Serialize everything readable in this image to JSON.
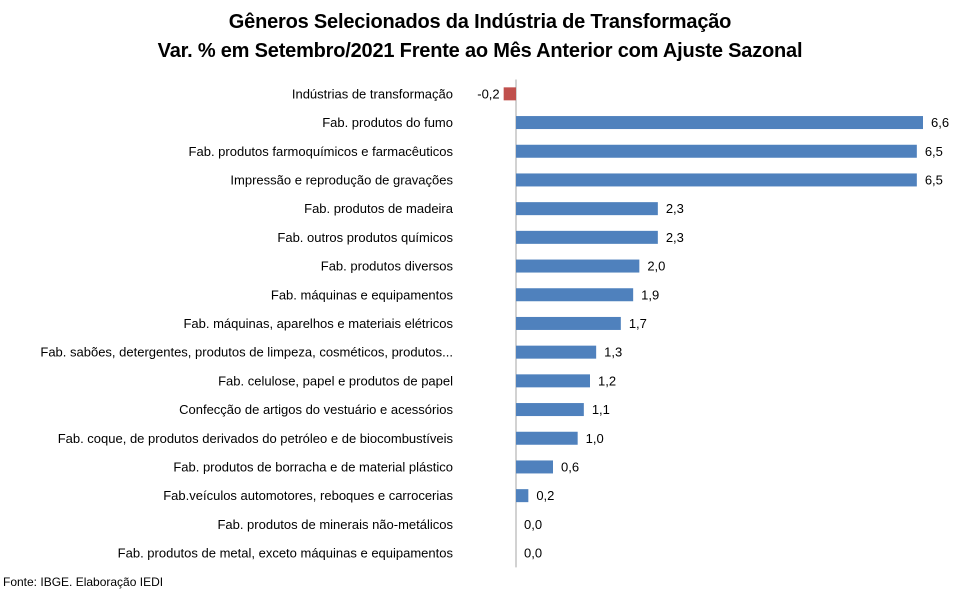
{
  "chart_data": {
    "type": "bar",
    "orientation": "horizontal",
    "title": "Gêneros Selecionados da Indústria de Transformação",
    "subtitle": "Var. % em Setembro/2021 Frente ao Mês Anterior com Ajuste Sazonal",
    "xlabel": "",
    "ylabel": "",
    "xlim": [
      -0.2,
      6.6
    ],
    "grid": false,
    "legend": "none",
    "categories": [
      "Indústrias de transformação",
      "Fab. produtos do fumo",
      "Fab. produtos farmoquímicos e farmacêuticos",
      "Impressão e reprodução de gravações",
      "Fab. produtos de madeira",
      "Fab. outros produtos químicos",
      "Fab. produtos diversos",
      "Fab. máquinas e equipamentos",
      "Fab. máquinas, aparelhos e materiais elétricos",
      "Fab. sabões, detergentes, produtos de limpeza, cosméticos, produtos...",
      "Fab. celulose, papel e produtos de papel",
      "Confecção de artigos do vestuário e acessórios",
      "Fab. coque, de produtos derivados do petróleo e de biocombustíveis",
      "Fab. produtos de borracha e de material plástico",
      "Fab.veículos automotores, reboques e carrocerias",
      "Fab. produtos de minerais não-metálicos",
      "Fab. produtos de metal, exceto máquinas e equipamentos"
    ],
    "values": [
      -0.2,
      6.6,
      6.5,
      6.5,
      2.3,
      2.3,
      2.0,
      1.9,
      1.7,
      1.3,
      1.2,
      1.1,
      1.0,
      0.6,
      0.2,
      0.0,
      0.0
    ],
    "value_labels": [
      "-0,2",
      "6,6",
      "6,5",
      "6,5",
      "2,3",
      "2,3",
      "2,0",
      "1,9",
      "1,7",
      "1,3",
      "1,2",
      "1,1",
      "1,0",
      "0,6",
      "0,2",
      "0,0",
      "0,0"
    ],
    "colors": {
      "positive": "#4f81bd",
      "negative": "#c0504d",
      "axis": "#a6a6a6"
    }
  },
  "source": "Fonte: IBGE. Elaboração IEDI"
}
